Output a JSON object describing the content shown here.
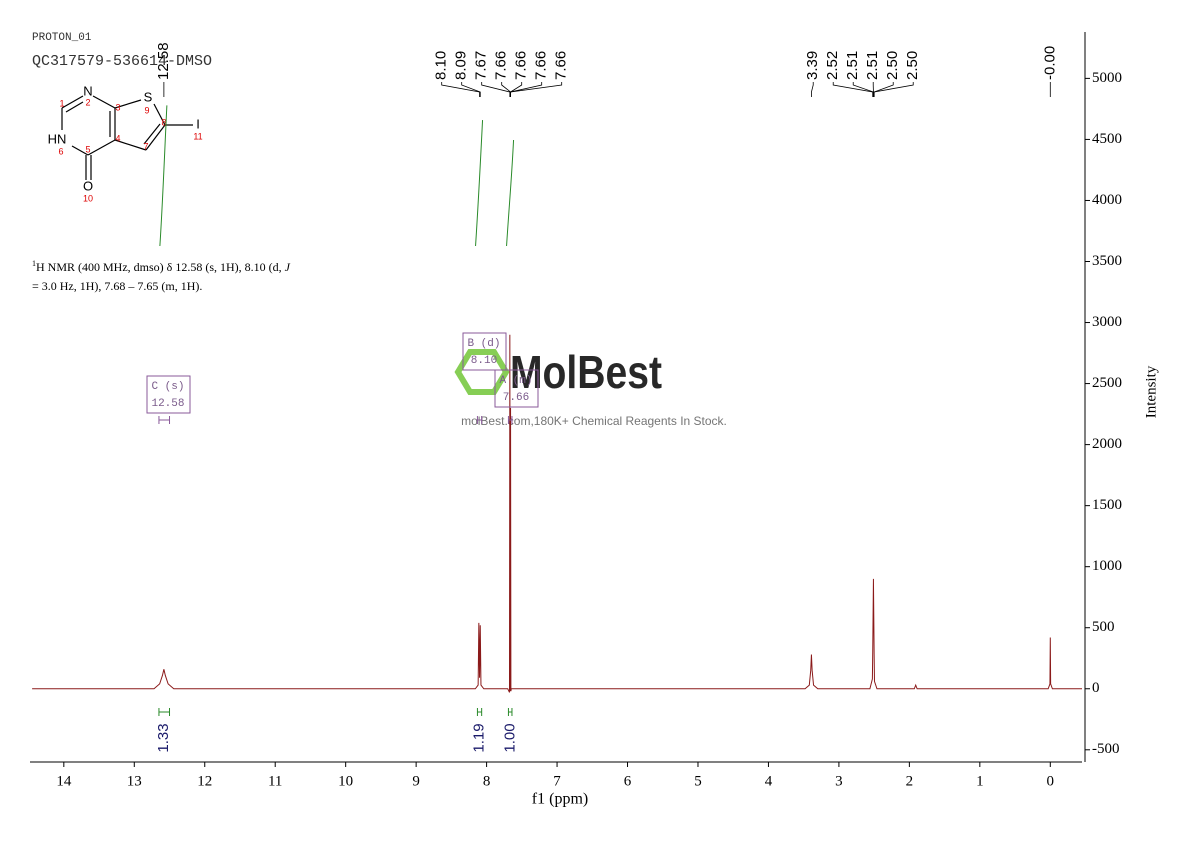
{
  "header": {
    "experiment": "PROTON_01",
    "sample": "QC317579-536614-DMSO"
  },
  "structure": {
    "atom_labels": [
      "N",
      "S",
      "HN",
      "O",
      "I"
    ],
    "atom_numbers": [
      "1",
      "2",
      "3",
      "4",
      "5",
      "6",
      "7",
      "8",
      "9",
      "10",
      "11"
    ]
  },
  "description": {
    "line1": [
      "1",
      "H NMR (400 MHz, dmso) δ 12.58 (s, 1H), 8.10 (d, ",
      "J"
    ],
    "line2": "= 3.0 Hz, 1H), 7.68 – 7.65 (m, 1H)."
  },
  "watermark": {
    "brand": "MolBest",
    "tagline": "molBest.com,180K+ Chemical Reagents In Stock."
  },
  "chart_data": {
    "type": "nmr",
    "xlabel": "f1 (ppm)",
    "ylabel": "Intensity",
    "xlim": [
      14.48,
      -0.45
    ],
    "ylim": [
      -600,
      5380
    ],
    "xticks": [
      14,
      13,
      12,
      11,
      10,
      9,
      8,
      7,
      6,
      5,
      4,
      3,
      2,
      1,
      0
    ],
    "yticks": [
      -500,
      0,
      500,
      1000,
      1500,
      2000,
      2500,
      3000,
      3500,
      4000,
      4500,
      5000
    ],
    "color": "#8b1a1a",
    "spectrum": {
      "x": [
        14.45,
        12.72,
        12.64,
        12.6,
        12.58,
        12.56,
        12.52,
        12.44,
        8.16,
        8.12,
        8.11,
        8.1,
        8.09,
        8.08,
        8.04,
        7.7,
        7.675,
        7.67,
        7.665,
        7.66,
        7.655,
        7.65,
        7.62,
        3.48,
        3.42,
        3.4,
        3.39,
        3.38,
        3.36,
        3.3,
        2.56,
        2.525,
        2.52,
        2.51,
        2.5,
        2.495,
        2.46,
        1.93,
        1.91,
        1.89,
        0.03,
        0.005,
        0,
        -0.005,
        -0.03,
        -0.45
      ],
      "values": [
        0,
        0,
        40,
        110,
        160,
        110,
        40,
        0,
        0,
        30,
        540,
        90,
        520,
        30,
        0,
        0,
        -30,
        2900,
        -20,
        2300,
        -20,
        0,
        0,
        0,
        30,
        150,
        280,
        150,
        30,
        0,
        0,
        80,
        300,
        900,
        280,
        60,
        0,
        0,
        30,
        0,
        0,
        40,
        420,
        40,
        0,
        0
      ]
    },
    "peak_labels": [
      [
        12.58
      ],
      [
        {
          "value": 8.1,
          "label": "8.10"
        },
        8.09,
        7.67,
        7.66,
        7.66,
        7.66,
        7.66
      ],
      [
        3.39,
        2.52,
        2.51,
        2.51,
        {
          "value": 2.5,
          "label": "2.50"
        },
        {
          "value": 2.5,
          "label": "2.50"
        }
      ],
      [
        {
          "value": 0,
          "label": "-0.00"
        }
      ]
    ],
    "multiplets": [
      {
        "name": "C (s)",
        "shift": 12.58,
        "range": [
          12.65,
          12.5
        ],
        "integral": 1.33
      },
      {
        "name": "B (d)",
        "shift": {
          "value": 8.1,
          "label": "8.10"
        },
        "range": [
          8.13,
          8.07
        ],
        "integral": 1.19
      },
      {
        "name": "A (m)",
        "shift": 7.66,
        "range": [
          7.69,
          7.64
        ],
        "integral": {
          "value": 1,
          "label": "1.00"
        }
      }
    ]
  }
}
